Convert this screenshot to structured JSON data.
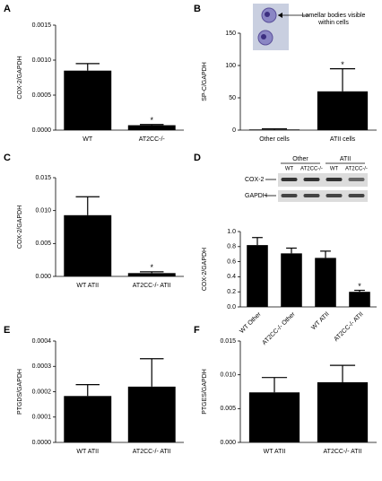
{
  "chart_data": [
    {
      "type": "bar",
      "panel": "A",
      "ylabel": "COX-2/GAPDH",
      "categories": [
        "WT",
        "AT2CC-/-"
      ],
      "values": [
        0.00085,
        7e-05
      ],
      "errors": [
        0.0001,
        1e-05
      ],
      "value_annotations": [
        null,
        "*"
      ],
      "color": "#000000",
      "ylim": [
        0,
        0.0015
      ],
      "yticks": [
        {
          "value": 0,
          "label": "0.0000"
        },
        0.0005,
        {
          "value": 0.001,
          "label": "0.0010"
        },
        0.0015
      ]
    },
    {
      "type": "bar",
      "panel": "B",
      "ylabel": "SP-C/GAPDH",
      "categories": [
        "Other cells",
        "ATII cells"
      ],
      "values": [
        1,
        60
      ],
      "errors": [
        1,
        35
      ],
      "value_annotations": [
        null,
        "*"
      ],
      "color": "#000000",
      "annotation": [
        "Lamellar bodies visible",
        "within cells"
      ],
      "ylim": [
        0,
        150
      ],
      "yticks": [
        0,
        50,
        100,
        150
      ]
    },
    {
      "type": "bar",
      "panel": "C",
      "ylabel": "COX-2/GAPDH",
      "categories": [
        "WT ATII",
        "AT2CC-/- ATII"
      ],
      "values": [
        0.0093,
        0.0005
      ],
      "errors": [
        0.0028,
        0.0002
      ],
      "value_annotations": [
        null,
        "*"
      ],
      "color": "#000000",
      "ylim": [
        0,
        0.015
      ],
      "yticks": [
        {
          "value": 0,
          "label": "0.000"
        },
        0.005,
        {
          "value": 0.01,
          "label": "0.010"
        },
        0.015
      ]
    },
    {
      "type": "bar",
      "panel": "D",
      "ylabel": "COX-2/GAPDH",
      "categories": [
        "WT Other",
        "AT2CC-/- Other",
        "WT ATII",
        "AT2CC-/- ATII"
      ],
      "values": [
        0.82,
        0.71,
        0.65,
        0.2
      ],
      "errors": [
        0.1,
        0.07,
        0.09,
        0.02
      ],
      "value_annotations": [
        null,
        null,
        null,
        "*"
      ],
      "color": "#000000",
      "blot": {
        "groups": [
          "Other",
          "ATII"
        ],
        "lanes": [
          "WT",
          "AT2CC-/-",
          "WT",
          "AT2CC-/-"
        ],
        "rows": [
          "COX-2",
          "GAPDH"
        ]
      },
      "rotate_labels": true,
      "ylim": [
        0,
        1
      ],
      "yticks": [
        {
          "value": 0,
          "label": "0.0"
        },
        0.2,
        0.4,
        0.6,
        0.8,
        {
          "value": 1,
          "label": "1.0"
        }
      ]
    },
    {
      "type": "bar",
      "panel": "E",
      "ylabel": "PTGDS/GAPDH",
      "categories": [
        "WT ATII",
        "AT2CC-/- ATII"
      ],
      "values": [
        0.000183,
        0.00022
      ],
      "errors": [
        4.5e-05,
        0.00011
      ],
      "color": "#000000",
      "ylim": [
        0,
        0.0004
      ],
      "yticks": [
        {
          "value": 0,
          "label": "0.0000"
        },
        0.0001,
        0.0002,
        0.0003,
        0.0004
      ]
    },
    {
      "type": "bar",
      "panel": "F",
      "ylabel": "PTGES/GAPDH",
      "categories": [
        "WT ATII",
        "AT2CC-/- ATII"
      ],
      "values": [
        0.0074,
        0.0089
      ],
      "errors": [
        0.0022,
        0.0025
      ],
      "color": "#000000",
      "ylim": [
        0,
        0.015
      ],
      "yticks": [
        {
          "value": 0,
          "label": "0.000"
        },
        0.005,
        {
          "value": 0.01,
          "label": "0.010"
        },
        0.015
      ]
    }
  ]
}
